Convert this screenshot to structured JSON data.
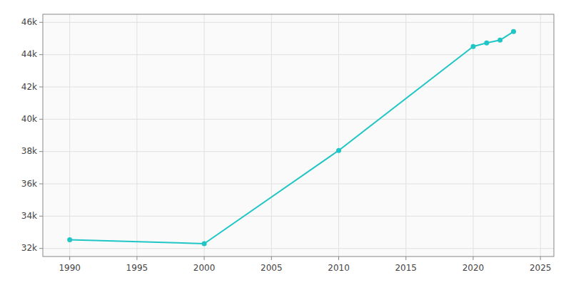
{
  "chart_data": {
    "type": "line",
    "x": [
      1990,
      2000,
      2010,
      2020,
      2021,
      2022,
      2023
    ],
    "values": [
      32534,
      32295,
      38065,
      44505,
      44726,
      44898,
      45426
    ],
    "color": "#20c5c5",
    "marker": "circle",
    "xlim": [
      1988,
      2026
    ],
    "xticks": [
      1990,
      1995,
      2000,
      2005,
      2010,
      2015,
      2020,
      2025
    ],
    "ylim": [
      31500,
      46500
    ],
    "yticks": [
      {
        "value": 32000,
        "label": "32k"
      },
      {
        "value": 34000,
        "label": "34k"
      },
      {
        "value": 36000,
        "label": "36k"
      },
      {
        "value": 38000,
        "label": "38k"
      },
      {
        "value": 40000,
        "label": "40k"
      },
      {
        "value": 42000,
        "label": "42k"
      },
      {
        "value": 44000,
        "label": "44k"
      },
      {
        "value": 46000,
        "label": "46k"
      }
    ],
    "grid": true
  }
}
